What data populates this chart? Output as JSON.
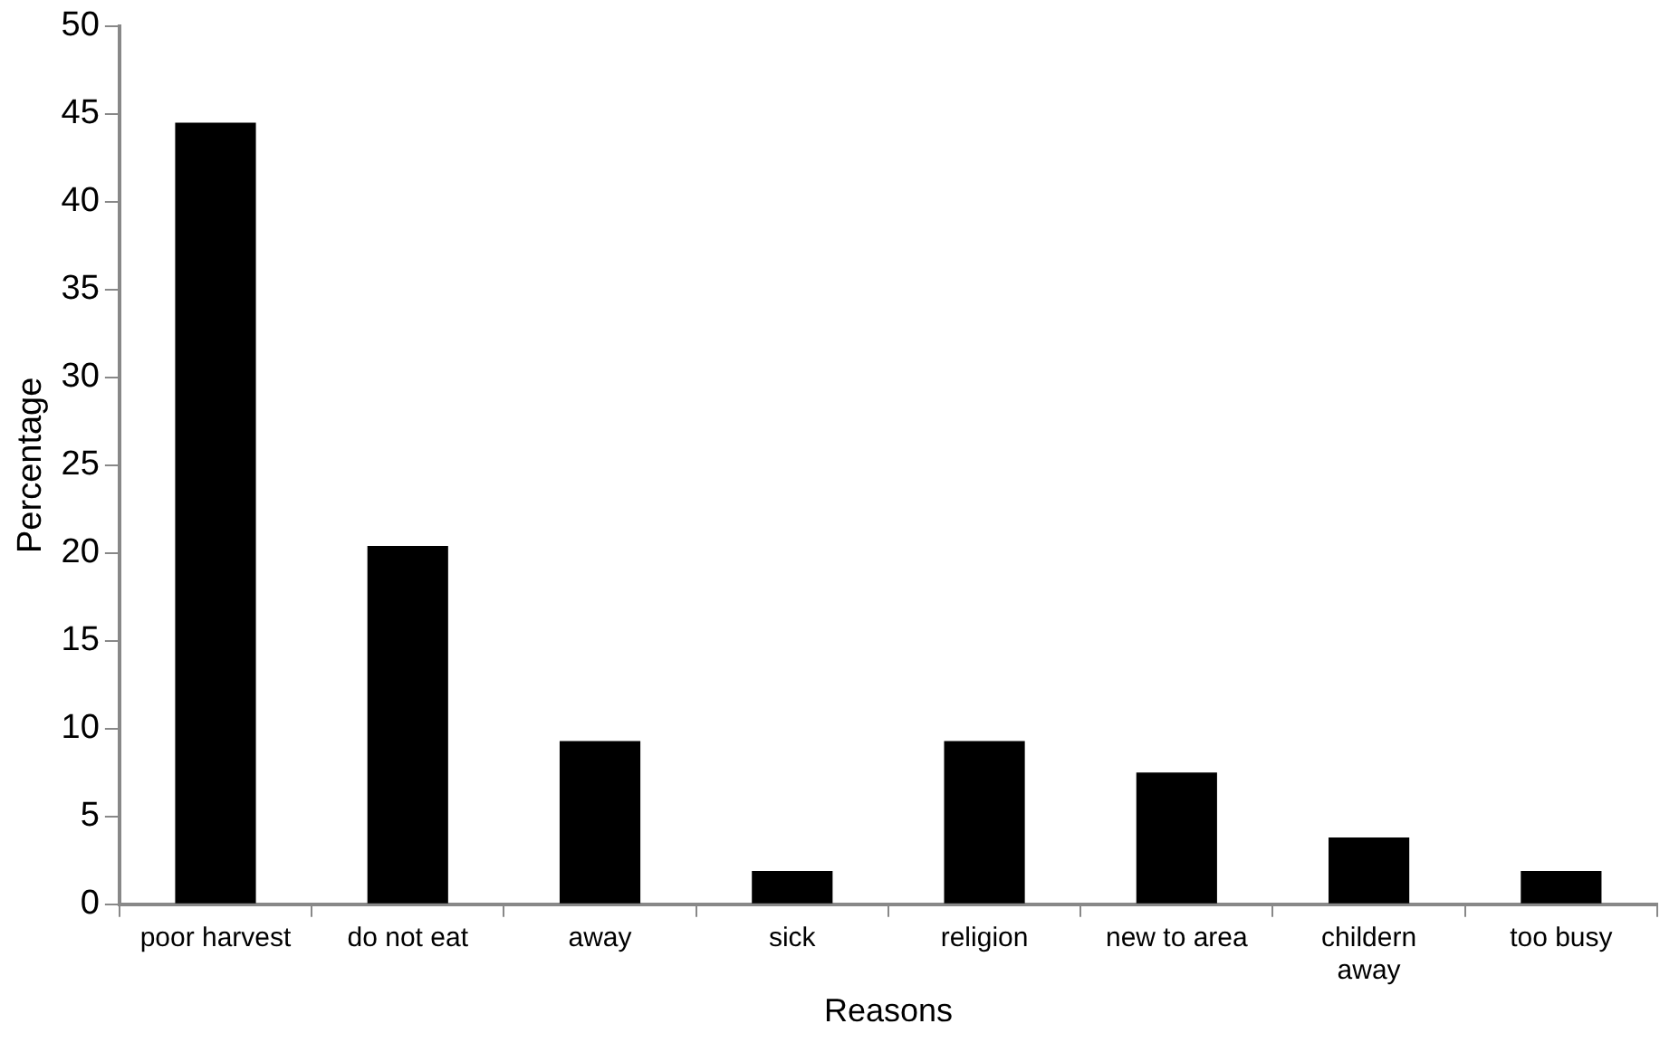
{
  "chart_data": {
    "type": "bar",
    "xlabel": "Reasons",
    "ylabel": "Percentage",
    "categories": [
      "poor harvest",
      "do not eat",
      "away",
      "sick",
      "religion",
      "new to area",
      "childern away",
      "too busy"
    ],
    "values": [
      44.5,
      20.4,
      9.3,
      1.9,
      9.3,
      7.5,
      3.8,
      1.9
    ],
    "color": "#000000",
    "ylim": [
      0,
      50
    ],
    "yticks": [
      0,
      5,
      10,
      15,
      20,
      25,
      30,
      35,
      40,
      45,
      50
    ],
    "grid": false,
    "legend": false
  }
}
